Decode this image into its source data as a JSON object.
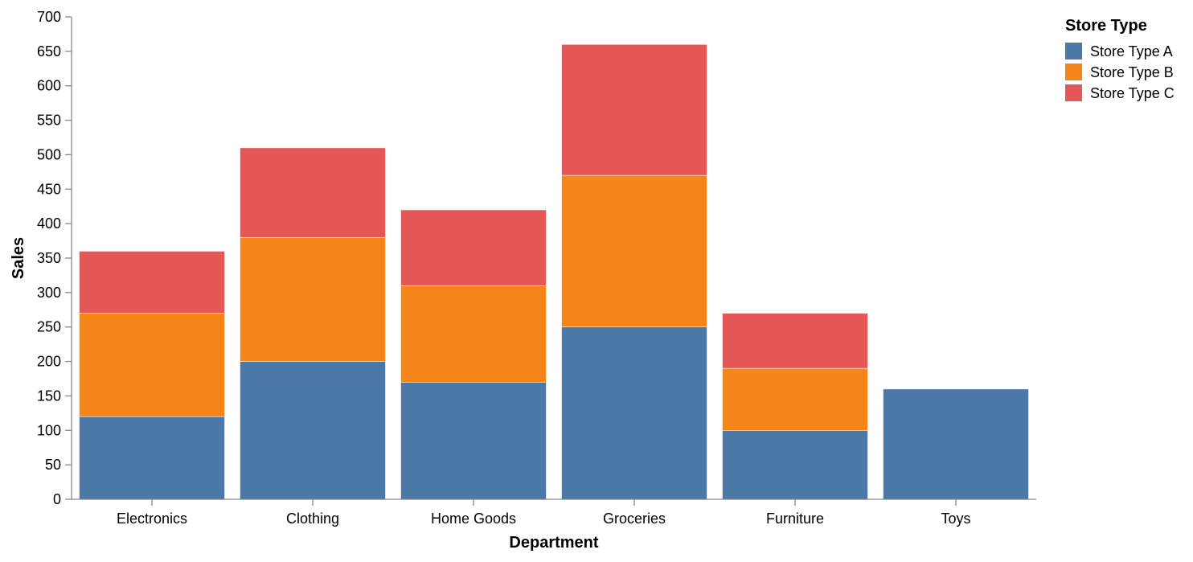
{
  "chart_data": {
    "type": "bar",
    "stacked": true,
    "categories": [
      "Electronics",
      "Clothing",
      "Home Goods",
      "Groceries",
      "Furniture",
      "Toys"
    ],
    "series": [
      {
        "name": "Store Type A",
        "color": "#4c78a8",
        "values": [
          120,
          200,
          170,
          250,
          100,
          160
        ]
      },
      {
        "name": "Store Type B",
        "color": "#f58518",
        "values": [
          150,
          180,
          140,
          220,
          90,
          0
        ]
      },
      {
        "name": "Store Type C",
        "color": "#e45756",
        "values": [
          90,
          130,
          110,
          190,
          80,
          0
        ]
      }
    ],
    "xlabel": "Department",
    "ylabel": "Sales",
    "ylim": [
      0,
      700
    ],
    "yticks": [
      0,
      50,
      100,
      150,
      200,
      250,
      300,
      350,
      400,
      450,
      500,
      550,
      600,
      650,
      700
    ],
    "grid": false,
    "legend": {
      "title": "Store Type",
      "placement": "top-right"
    }
  }
}
